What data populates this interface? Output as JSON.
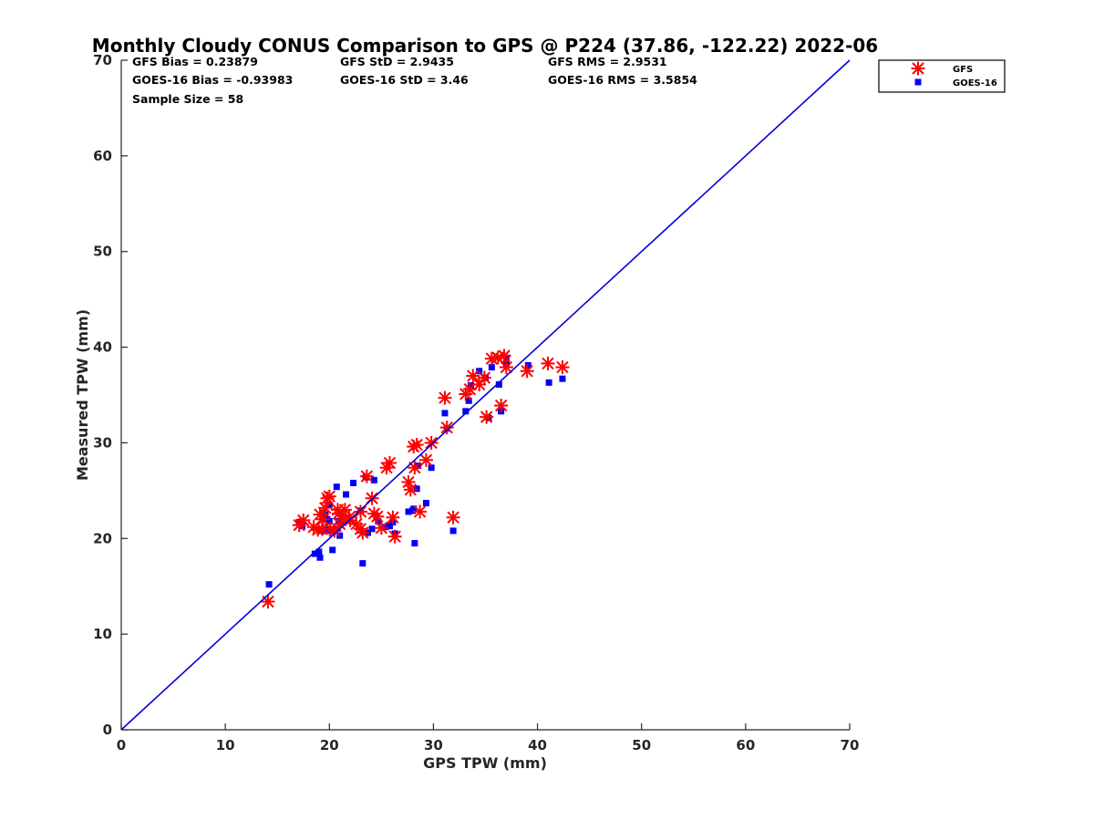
{
  "chart_data": {
    "type": "scatter",
    "title": "Monthly Cloudy CONUS Comparison to GPS @ P224 (37.86, -122.22) 2022-06",
    "xlabel": "GPS TPW (mm)",
    "ylabel": "Measured TPW (mm)",
    "xlim": [
      0,
      70
    ],
    "ylim": [
      0,
      70
    ],
    "xticks": [
      0,
      10,
      20,
      30,
      40,
      50,
      60,
      70
    ],
    "yticks": [
      0,
      10,
      20,
      30,
      40,
      50,
      60,
      70
    ],
    "grid": false,
    "legend_position": "top-right",
    "stats": [
      [
        "GFS Bias = 0.23879",
        "GFS StD = 2.9435",
        "GFS RMS = 2.9531"
      ],
      [
        "GOES-16 Bias = -0.93983",
        "GOES-16 StD = 3.46",
        "GOES-16 RMS = 3.5854"
      ],
      [
        "Sample Size = 58"
      ]
    ],
    "reference_line": {
      "name": "1:1",
      "color": "#0000dd",
      "x": [
        0,
        70
      ],
      "y": [
        0,
        70
      ]
    },
    "series": [
      {
        "name": "GFS",
        "marker": "asterisk",
        "color": "#ff0000",
        "x": [
          14.1,
          17.1,
          17.5,
          18.5,
          18.9,
          19.1,
          19.3,
          19.6,
          19.8,
          20.0,
          20.1,
          20.5,
          20.8,
          21.0,
          21.2,
          21.5,
          22.0,
          22.6,
          23.0,
          23.2,
          23.6,
          24.1,
          24.3,
          24.6,
          25.0,
          25.5,
          25.8,
          26.1,
          26.3,
          27.6,
          27.8,
          28.1,
          28.2,
          28.4,
          28.7,
          29.3,
          29.8,
          31.1,
          31.3,
          31.9,
          33.1,
          33.5,
          33.8,
          34.4,
          34.9,
          35.1,
          35.6,
          36.2,
          36.5,
          36.8,
          37.0,
          39.0,
          41.0,
          42.4,
          19.4,
          20.9,
          21.9,
          23.0
        ],
        "y": [
          13.4,
          21.4,
          21.9,
          21.2,
          20.9,
          22.5,
          21.0,
          23.2,
          24.2,
          24.4,
          21.0,
          20.8,
          23.0,
          21.5,
          22.4,
          23.0,
          21.9,
          21.5,
          21.0,
          20.6,
          26.5,
          24.2,
          22.6,
          22.3,
          21.1,
          27.4,
          27.9,
          22.2,
          20.2,
          25.9,
          25.1,
          29.6,
          27.4,
          29.8,
          22.8,
          28.2,
          30.0,
          34.7,
          31.6,
          22.2,
          35.1,
          35.6,
          37.0,
          36.1,
          36.8,
          32.7,
          38.8,
          38.9,
          33.9,
          39.1,
          37.9,
          37.5,
          38.3,
          37.9,
          22.0,
          22.6,
          22.2,
          22.8
        ]
      },
      {
        "name": "GOES-16",
        "marker": "square",
        "color": "#0000ff",
        "x": [
          14.2,
          17.1,
          17.4,
          18.6,
          19.0,
          19.1,
          19.2,
          19.4,
          19.8,
          20.0,
          20.1,
          20.3,
          20.6,
          20.7,
          21.0,
          21.3,
          21.6,
          22.3,
          23.0,
          23.2,
          23.5,
          23.7,
          24.1,
          24.3,
          24.7,
          25.4,
          25.8,
          26.1,
          26.3,
          27.6,
          28.0,
          28.1,
          28.4,
          28.5,
          29.3,
          29.8,
          31.1,
          31.3,
          31.9,
          33.1,
          33.4,
          33.6,
          34.4,
          35.0,
          35.3,
          35.6,
          36.3,
          36.5,
          37.0,
          37.0,
          39.1,
          41.1,
          42.4,
          19.6,
          20.0,
          20.9,
          28.2,
          19.8
        ],
        "y": [
          15.2,
          21.7,
          21.3,
          18.4,
          18.6,
          18.0,
          20.8,
          22.7,
          22.0,
          21.8,
          20.8,
          18.8,
          21.0,
          25.4,
          20.3,
          21.9,
          24.6,
          25.8,
          22.9,
          17.4,
          26.4,
          20.6,
          21.0,
          26.1,
          21.8,
          21.2,
          21.3,
          21.7,
          20.5,
          22.8,
          22.9,
          23.1,
          25.2,
          27.6,
          23.7,
          27.4,
          33.1,
          31.5,
          20.8,
          33.3,
          34.4,
          36.0,
          37.5,
          36.8,
          32.6,
          37.9,
          36.1,
          33.3,
          38.2,
          38.9,
          38.1,
          36.3,
          36.7,
          22.5,
          23.5,
          21.8,
          19.5,
          20.9
        ]
      }
    ]
  }
}
